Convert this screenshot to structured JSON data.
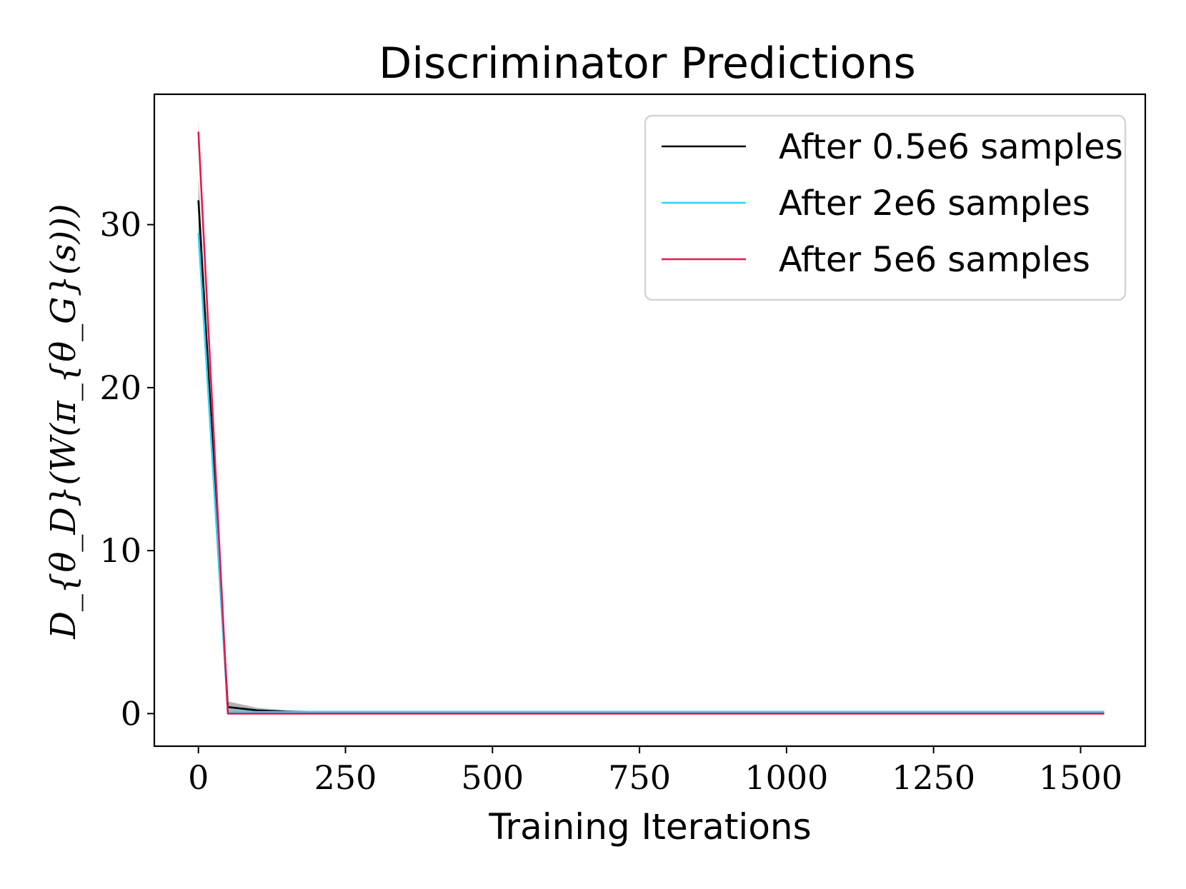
{
  "chart_data": {
    "type": "line",
    "title": "Discriminator Predictions",
    "xlabel": "Training Iterations",
    "ylabel": "D_{θ_D}(W(π_{θ_G}(s)))",
    "xlim": [
      -75,
      1610
    ],
    "ylim": [
      -2,
      38
    ],
    "xticks": [
      0,
      250,
      500,
      750,
      1000,
      1250,
      1500
    ],
    "xtick_labels": [
      "0",
      "250",
      "500",
      "750",
      "1000",
      "1250",
      "1500"
    ],
    "yticks": [
      0,
      10,
      20,
      30
    ],
    "ytick_labels": [
      "0",
      "10",
      "20",
      "30"
    ],
    "grid": false,
    "legend_position": "top-right",
    "series": [
      {
        "name": "After 0.5e6 samples",
        "color": "#000000",
        "x": [
          0,
          50,
          100,
          150,
          200,
          250,
          300,
          400,
          500,
          750,
          1000,
          1250,
          1540
        ],
        "y": [
          31.5,
          0.4,
          0.2,
          0.12,
          0.08,
          0.06,
          0.05,
          0.05,
          0.05,
          0.05,
          0.05,
          0.05,
          0.05
        ],
        "y_lower": [
          29.5,
          0.15,
          0.08,
          0.05,
          0.04,
          0.03,
          0.03,
          0.03,
          0.03,
          0.03,
          0.03,
          0.03,
          0.03
        ],
        "y_upper": [
          33.0,
          0.75,
          0.35,
          0.2,
          0.13,
          0.1,
          0.08,
          0.08,
          0.08,
          0.08,
          0.08,
          0.08,
          0.08
        ]
      },
      {
        "name": "After 2e6 samples",
        "color": "#2ed3f5",
        "x": [
          0,
          50,
          100,
          150,
          200,
          250,
          300,
          400,
          500,
          750,
          1000,
          1250,
          1540
        ],
        "y": [
          29.5,
          0.1,
          0.1,
          0.1,
          0.1,
          0.1,
          0.1,
          0.1,
          0.1,
          0.1,
          0.1,
          0.1,
          0.1
        ],
        "y_lower": [
          29.0,
          0.05,
          0.05,
          0.05,
          0.05,
          0.05,
          0.05,
          0.05,
          0.05,
          0.05,
          0.05,
          0.05,
          0.05
        ],
        "y_upper": [
          30.0,
          0.2,
          0.2,
          0.2,
          0.2,
          0.2,
          0.2,
          0.2,
          0.2,
          0.2,
          0.2,
          0.2,
          0.2
        ]
      },
      {
        "name": "After 5e6 samples",
        "color": "#e8174c",
        "x": [
          0,
          50,
          100,
          150,
          200,
          250,
          300,
          400,
          500,
          750,
          1000,
          1250,
          1540
        ],
        "y": [
          35.7,
          0.0,
          0.0,
          0.0,
          0.0,
          0.0,
          0.0,
          0.0,
          0.0,
          0.0,
          0.0,
          0.0,
          0.0
        ],
        "y_lower": [
          35.0,
          0.0,
          0.0,
          0.0,
          0.0,
          0.0,
          0.0,
          0.0,
          0.0,
          0.0,
          0.0,
          0.0,
          0.0
        ],
        "y_upper": [
          36.4,
          0.05,
          0.05,
          0.05,
          0.05,
          0.05,
          0.05,
          0.05,
          0.05,
          0.05,
          0.05,
          0.05,
          0.05
        ]
      }
    ]
  }
}
